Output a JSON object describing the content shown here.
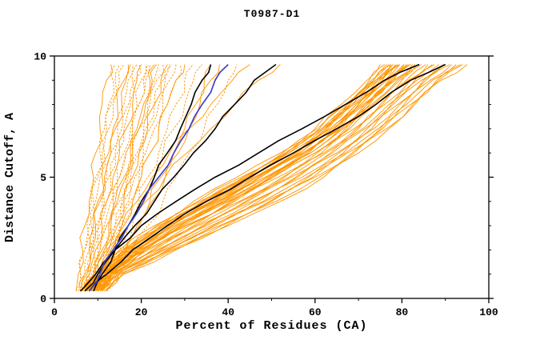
{
  "chart_data": {
    "type": "line",
    "title": "T0987-D1",
    "xlabel": "Percent of Residues (CA)",
    "ylabel": "Distance Cutoff, A",
    "xlim": [
      0,
      100
    ],
    "ylim": [
      0,
      10
    ],
    "grid": false,
    "legend": "none",
    "x_ticks": {
      "major": [
        0,
        20,
        40,
        60,
        80,
        100
      ],
      "minor": [
        10,
        30,
        50,
        70,
        90
      ]
    },
    "y_ticks": {
      "major": [
        0,
        5,
        10
      ],
      "minor": [
        1,
        2,
        3,
        4,
        6,
        7,
        8,
        9
      ]
    },
    "colors": {
      "model": "#ff9500",
      "highlight": "#000000",
      "reference": "#4040c8",
      "frame": "#000000"
    },
    "y_levels": [
      0.3,
      1,
      2,
      3,
      4,
      5,
      6,
      7,
      8,
      9,
      9.65
    ],
    "model_curves": [
      [
        5,
        5.5,
        6.5,
        7,
        8,
        9,
        9.5,
        10.5,
        11,
        12,
        13
      ],
      [
        5.5,
        6,
        7,
        8,
        9,
        10,
        11,
        12,
        13,
        14,
        15
      ],
      [
        6,
        7,
        8,
        8.5,
        9.5,
        10.5,
        11.5,
        12.5,
        13.5,
        15,
        16
      ],
      [
        6,
        7,
        8,
        9,
        10,
        11,
        12.5,
        13.5,
        14.5,
        16,
        17
      ],
      [
        6.5,
        7.5,
        8.5,
        9.5,
        11,
        12,
        13,
        14.5,
        16,
        17,
        18
      ],
      [
        7,
        8,
        9,
        10,
        11.5,
        12.5,
        14,
        15.5,
        17,
        18,
        19
      ],
      [
        7,
        8,
        9.5,
        11,
        12,
        13.5,
        15,
        16.5,
        18,
        19,
        20
      ],
      [
        7.5,
        8.5,
        10,
        11.5,
        13,
        14.5,
        16,
        17.5,
        19,
        20,
        21
      ],
      [
        8,
        9,
        10.5,
        12,
        13.5,
        15,
        16.5,
        18,
        19.5,
        21,
        22
      ],
      [
        8,
        9.5,
        11,
        12.5,
        14,
        16,
        17.5,
        19,
        20.5,
        22,
        23
      ],
      [
        8.5,
        10,
        11.5,
        13,
        15,
        16.5,
        18,
        19.5,
        21.5,
        23,
        24
      ],
      [
        9,
        10.5,
        12,
        14,
        15.5,
        17,
        19,
        20.5,
        22,
        23.5,
        25
      ],
      [
        9,
        10.5,
        12.5,
        14.5,
        16,
        18,
        19.5,
        21.5,
        23,
        24.5,
        26
      ],
      [
        9.5,
        11,
        13,
        15,
        17,
        18.5,
        20.5,
        22,
        24,
        25.5,
        27
      ],
      [
        10,
        11.5,
        13.5,
        15.5,
        17.5,
        19.5,
        21,
        23,
        25,
        26.5,
        28
      ],
      [
        10,
        12,
        14,
        16,
        18,
        20,
        22,
        24,
        26,
        28,
        30
      ],
      [
        10.5,
        12.5,
        15,
        17,
        19.5,
        21.5,
        24,
        26,
        28,
        30,
        32
      ],
      [
        11,
        13,
        15.5,
        18,
        20.5,
        23,
        25,
        27.5,
        30,
        32,
        34
      ],
      [
        11,
        13.5,
        16.5,
        19.5,
        22.5,
        25.5,
        28.5,
        31,
        33.5,
        36,
        38
      ],
      [
        12,
        15,
        18,
        21.5,
        25,
        28,
        31,
        34.5,
        37.5,
        40,
        42
      ],
      [
        5,
        6,
        7,
        7.5,
        8.5,
        9.5,
        10.5,
        11.5,
        12.5,
        13.5,
        14
      ],
      [
        6.5,
        7.5,
        8.5,
        9.5,
        10.5,
        11.5,
        13,
        14,
        15.5,
        16.5,
        17.5
      ],
      [
        7,
        8,
        9,
        10.5,
        12,
        13,
        14.5,
        16,
        17.5,
        18.5,
        19.5
      ],
      [
        7.5,
        9,
        10.5,
        12,
        13.5,
        15,
        16.5,
        18,
        19.5,
        20.5,
        21.5
      ],
      [
        8.5,
        10,
        11.5,
        13,
        14.5,
        16.5,
        18,
        19.5,
        21,
        22.5,
        23.5
      ],
      [
        9,
        10.5,
        12.5,
        14,
        16,
        17.5,
        19.5,
        21,
        23,
        25,
        26.5
      ],
      [
        9.5,
        11.5,
        13.5,
        15.5,
        18,
        20,
        22,
        24,
        26,
        28,
        29
      ],
      [
        11,
        13,
        16,
        19,
        22,
        24.5,
        27.5,
        30,
        32.5,
        34.5,
        36
      ],
      [
        7,
        9,
        12,
        15.5,
        19,
        22.5,
        26.5,
        31,
        36,
        41,
        45
      ],
      [
        8,
        10,
        13,
        17,
        21,
        25.5,
        30.5,
        36,
        41.5,
        47,
        52
      ],
      [
        6,
        9,
        15,
        23,
        32,
        42,
        52,
        60,
        66,
        72,
        75
      ],
      [
        6,
        9.5,
        15.5,
        23.5,
        33,
        43,
        52.5,
        60.5,
        67,
        72.5,
        76
      ],
      [
        6.5,
        9.5,
        16,
        24.5,
        33.5,
        43.5,
        53.5,
        61.5,
        67.5,
        73.5,
        76.5
      ],
      [
        7,
        10,
        16.5,
        25,
        34.5,
        44.5,
        54,
        62,
        68,
        74,
        77.5
      ],
      [
        7,
        10,
        17,
        25.5,
        35,
        45,
        55,
        62.5,
        68.5,
        74.5,
        78
      ],
      [
        7,
        10.5,
        17.5,
        26.5,
        36,
        46,
        55.5,
        63.5,
        69.5,
        75.5,
        79
      ],
      [
        7.5,
        10.5,
        18,
        27,
        36.5,
        46.5,
        56.5,
        64,
        70,
        76,
        79.5
      ],
      [
        7.5,
        11,
        18.5,
        27.5,
        37.5,
        47.5,
        57,
        64.5,
        70.5,
        76.5,
        80.5
      ],
      [
        8,
        11,
        19,
        28.5,
        38.5,
        48.5,
        57.5,
        65.5,
        71.5,
        77.5,
        81.5
      ],
      [
        8,
        11.5,
        19.5,
        29,
        39,
        49,
        58.5,
        66,
        72,
        78,
        82
      ],
      [
        8.5,
        12,
        20,
        29.5,
        40,
        50,
        59,
        66.5,
        72.5,
        78.5,
        83
      ],
      [
        8.5,
        12,
        20.5,
        30.5,
        40.5,
        50.5,
        60,
        67.5,
        73.5,
        79.5,
        83.5
      ],
      [
        9,
        12.5,
        21,
        31,
        41.5,
        51.5,
        60.5,
        68,
        74,
        80,
        84.5
      ],
      [
        9,
        12.5,
        21.5,
        32,
        42.5,
        52.5,
        61.5,
        69,
        75,
        81,
        85.5
      ],
      [
        9.5,
        13,
        22.5,
        32.5,
        43,
        53,
        62,
        69.5,
        75.5,
        81.5,
        86
      ],
      [
        9.5,
        13,
        23,
        33,
        44,
        54,
        62.5,
        70,
        76,
        82,
        87
      ],
      [
        10,
        13.5,
        23.5,
        34,
        44.5,
        54.5,
        63.5,
        71,
        77,
        83,
        87.5
      ],
      [
        10,
        13.5,
        24,
        34.5,
        45.5,
        55.5,
        64,
        71.5,
        77.5,
        83.5,
        88.5
      ],
      [
        10.5,
        14,
        24.5,
        35,
        46,
        56,
        65,
        72,
        78,
        84.5,
        89.5
      ],
      [
        10.5,
        14.5,
        25,
        36,
        47,
        57,
        65.5,
        73,
        79,
        85,
        90
      ],
      [
        11,
        14.5,
        25.5,
        36.5,
        48,
        58,
        66.5,
        73.5,
        79.5,
        85.5,
        91
      ],
      [
        11,
        15,
        26,
        37,
        48.5,
        58.5,
        67,
        74.5,
        80.5,
        86.5,
        91.5
      ],
      [
        11.5,
        15,
        26.5,
        38,
        49.5,
        59.5,
        67.5,
        75,
        81,
        87,
        92.5
      ],
      [
        11.5,
        15.5,
        27,
        38.5,
        50,
        60,
        68.5,
        75.5,
        82,
        88,
        93.5
      ],
      [
        12,
        16,
        27.5,
        39.5,
        51,
        61,
        69,
        76.5,
        82.5,
        88.5,
        94
      ],
      [
        12,
        16,
        28,
        40,
        52,
        62,
        70,
        77,
        83,
        89,
        95
      ],
      [
        7,
        10,
        16,
        24,
        34,
        44,
        53,
        61,
        67,
        73,
        77
      ],
      [
        7,
        10.5,
        16.5,
        24.5,
        34.5,
        44.5,
        53.5,
        61.5,
        67.5,
        73.5,
        77.5
      ],
      [
        7.5,
        11,
        17,
        25,
        35,
        45,
        54,
        62,
        68,
        74,
        78
      ],
      [
        7.5,
        11,
        17.5,
        25.5,
        36,
        45.5,
        55,
        62.5,
        68.5,
        74.5,
        78.5
      ],
      [
        8,
        11.5,
        18,
        26,
        36.5,
        46,
        55.5,
        63,
        69,
        75,
        79
      ],
      [
        8,
        12,
        18.5,
        26.5,
        37,
        46.5,
        56,
        63.5,
        69.5,
        75.5,
        79.5
      ],
      [
        8.5,
        12,
        19,
        27,
        37.5,
        47,
        56.5,
        64,
        70,
        76,
        80.5
      ],
      [
        8.5,
        12.5,
        19.5,
        28,
        38,
        47.5,
        57.5,
        64.5,
        70.5,
        76.5,
        81
      ],
      [
        9,
        13,
        20,
        28.5,
        39,
        48.5,
        58,
        65,
        71,
        77,
        81.5
      ],
      [
        9,
        13,
        20,
        29,
        39.5,
        49,
        58.5,
        65.5,
        71.5,
        77.5,
        82
      ],
      [
        9.5,
        13.5,
        20.5,
        29.5,
        40,
        49.5,
        59,
        66,
        72,
        78,
        82.5
      ],
      [
        10,
        14,
        21,
        30,
        41,
        50,
        60,
        67,
        73,
        79,
        83
      ]
    ],
    "highlight_curves": [
      [
        9,
        11,
        14,
        17,
        20,
        23,
        26,
        29,
        31.5,
        34,
        36
      ],
      [
        7,
        10,
        14,
        18.5,
        23,
        27.5,
        32,
        37,
        41.5,
        46,
        51
      ],
      [
        6,
        9.5,
        14,
        20,
        28,
        37,
        47,
        57,
        67,
        76,
        84
      ],
      [
        8,
        12,
        18,
        26,
        35,
        45,
        55,
        65,
        74,
        82,
        90
      ]
    ],
    "reference_curves": [
      [
        8,
        10.5,
        13.5,
        17,
        20.5,
        24,
        27.5,
        31,
        34,
        37,
        40
      ]
    ]
  }
}
